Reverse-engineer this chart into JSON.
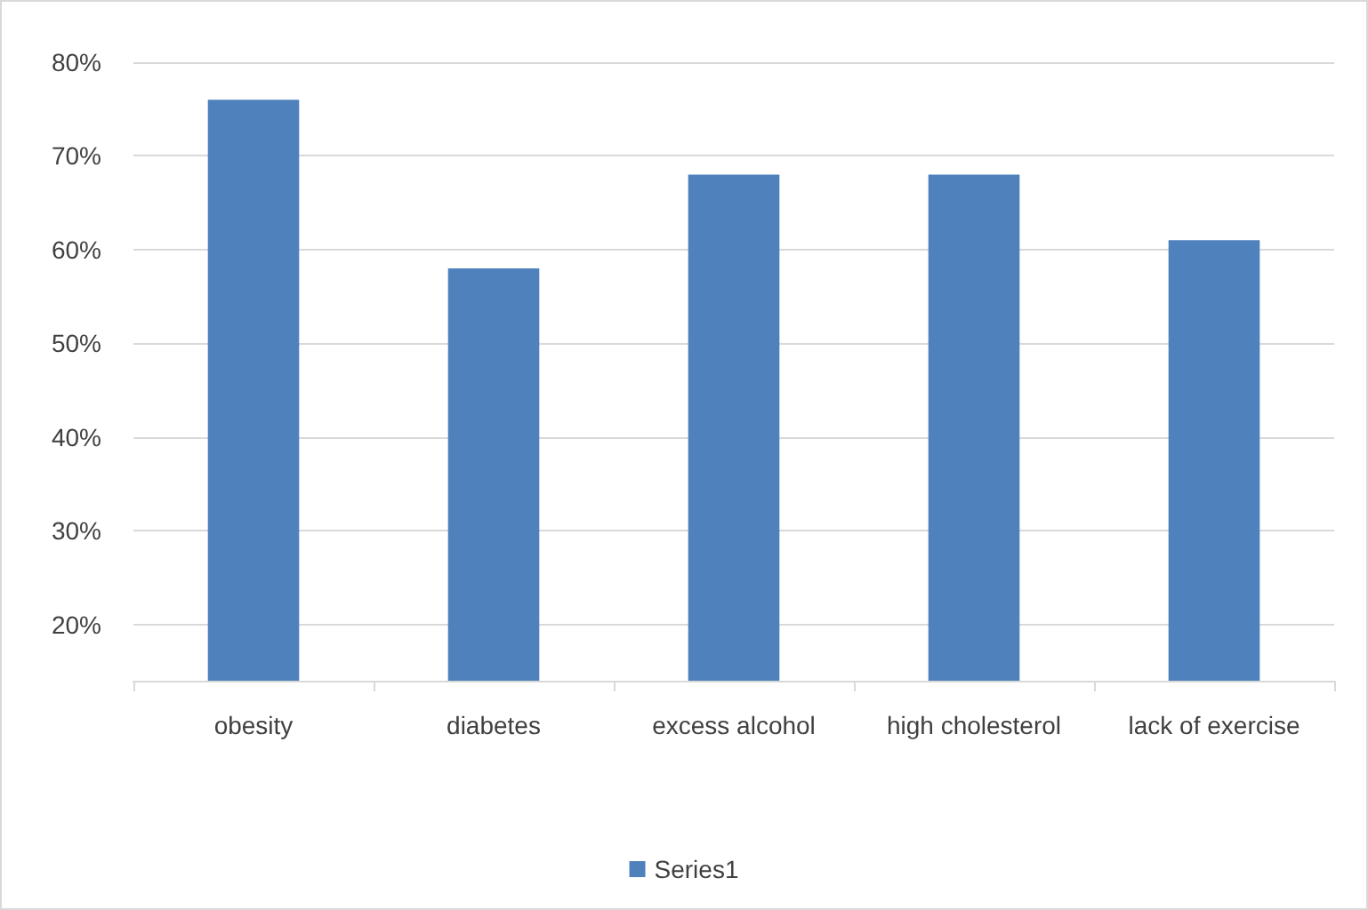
{
  "chart_data": {
    "type": "bar",
    "categories": [
      "obesity",
      "diabetes",
      "excess alcohol",
      "high cholesterol",
      "lack of exercise"
    ],
    "series": [
      {
        "name": "Series1",
        "color": "#4f81bd",
        "values": [
          76,
          58,
          68,
          68,
          61
        ]
      }
    ],
    "ylim": [
      14,
      80
    ],
    "yticks": [
      {
        "value": 20,
        "label": "20%"
      },
      {
        "value": 30,
        "label": "30%"
      },
      {
        "value": 40,
        "label": "40%"
      },
      {
        "value": 50,
        "label": "50%"
      },
      {
        "value": 60,
        "label": "60%"
      },
      {
        "value": 70,
        "label": "70%"
      },
      {
        "value": 80,
        "label": "80%"
      }
    ],
    "grid": "y",
    "legend": "bottom"
  }
}
